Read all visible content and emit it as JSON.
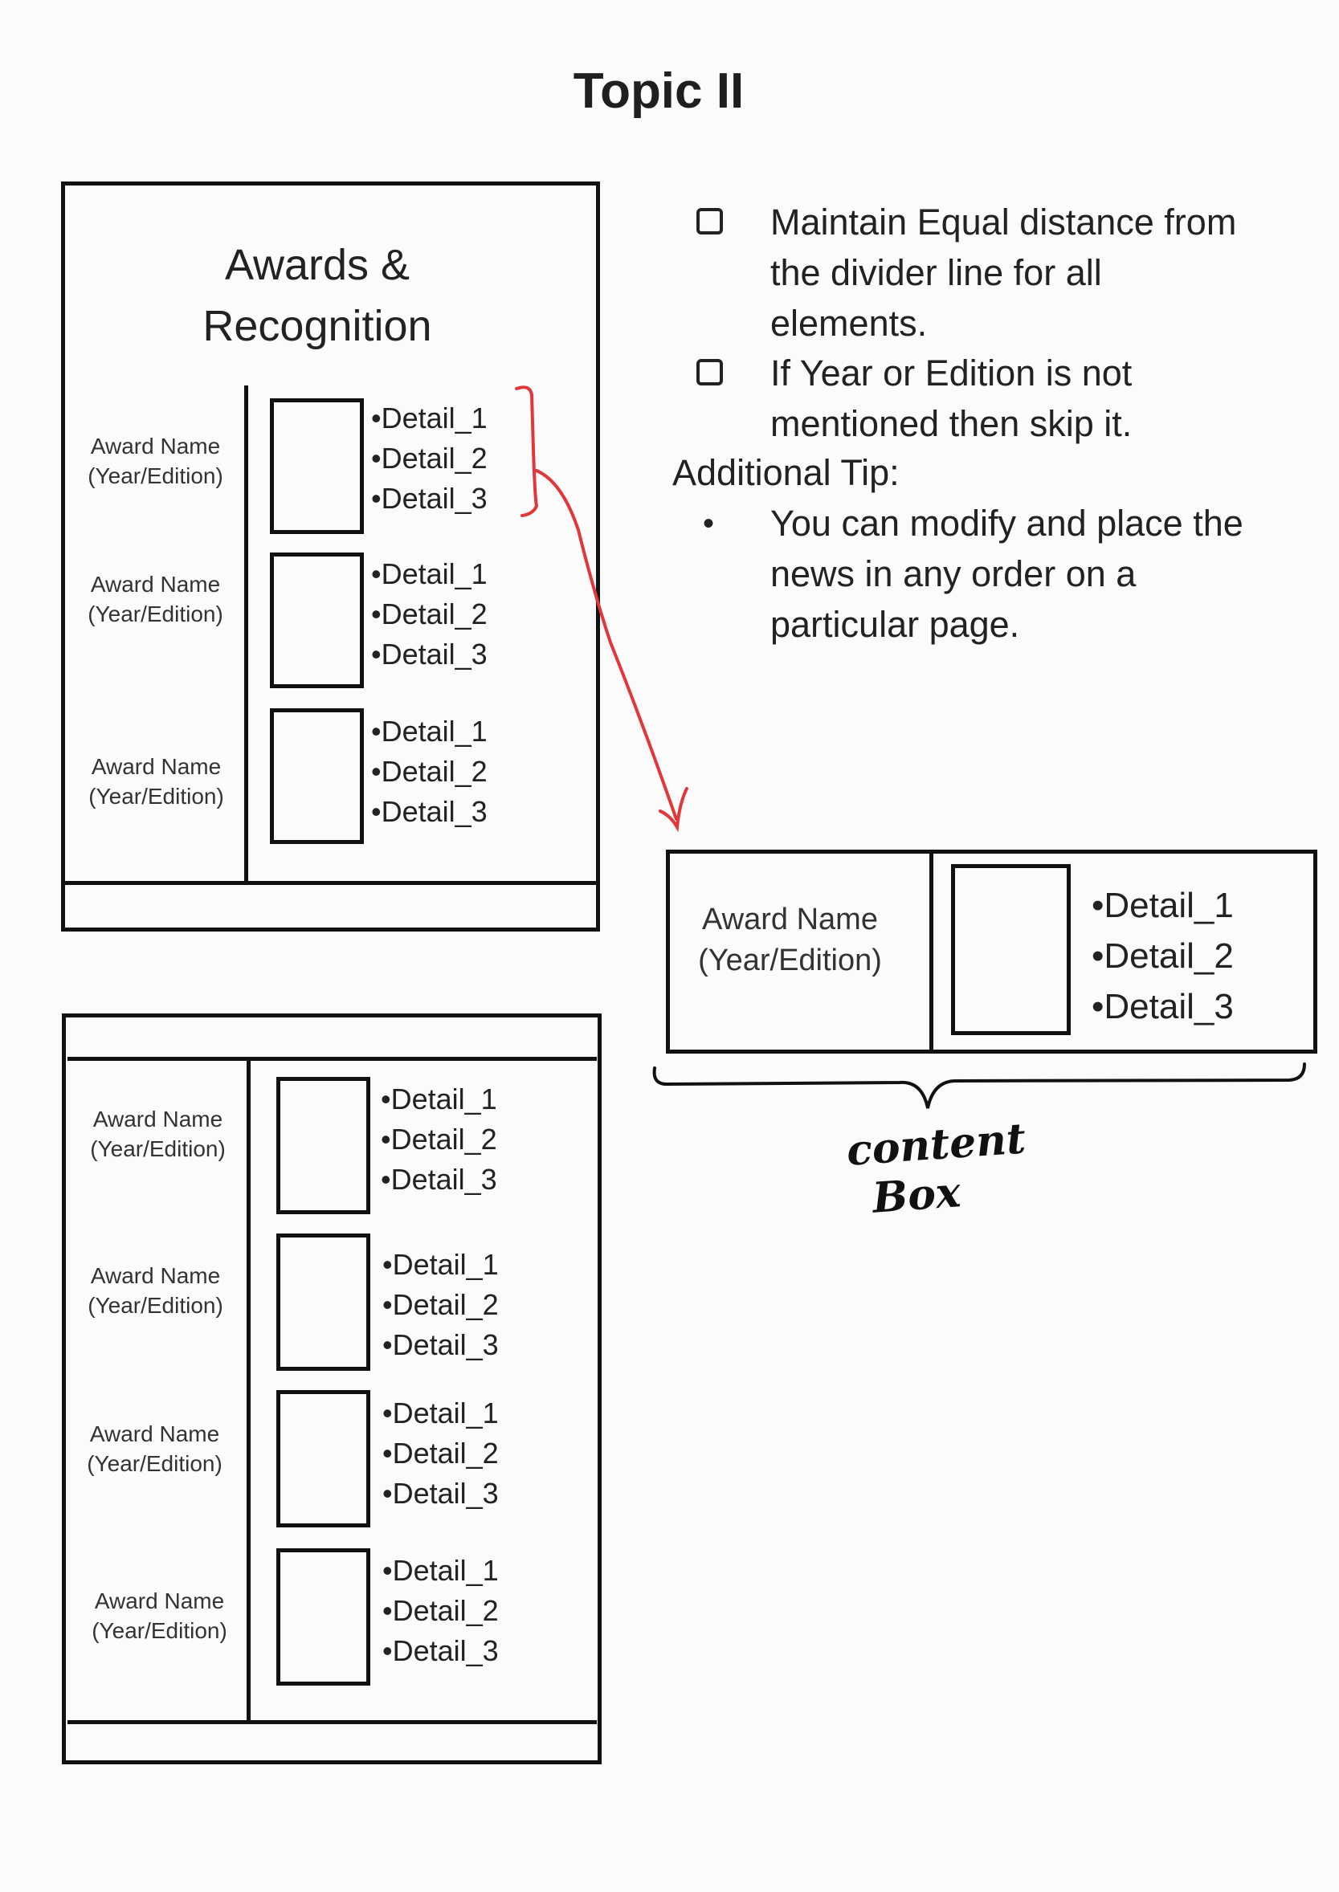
{
  "title": "Topic II",
  "section_heading": [
    "Awards &",
    "Recognition"
  ],
  "award_name_label": "Award Name",
  "award_year_label": "(Year/Edition)",
  "detail_items": [
    "•Detail_1",
    "•Detail_2",
    "•Detail_3"
  ],
  "notes": {
    "item1": [
      "Maintain Equal distance from",
      "the divider line for all",
      "elements."
    ],
    "item2": [
      "If Year or Edition is not",
      "mentioned then skip it."
    ],
    "tip_heading": "Additional Tip:",
    "tip_bullet": "•",
    "tip": [
      "You can modify and place the",
      "news in any order on a",
      "particular page."
    ]
  },
  "content_box_label": [
    "content",
    "Box"
  ],
  "colors": {
    "ink": "#111111",
    "annotation": "#e0373a",
    "background": "#fbfbfb"
  }
}
